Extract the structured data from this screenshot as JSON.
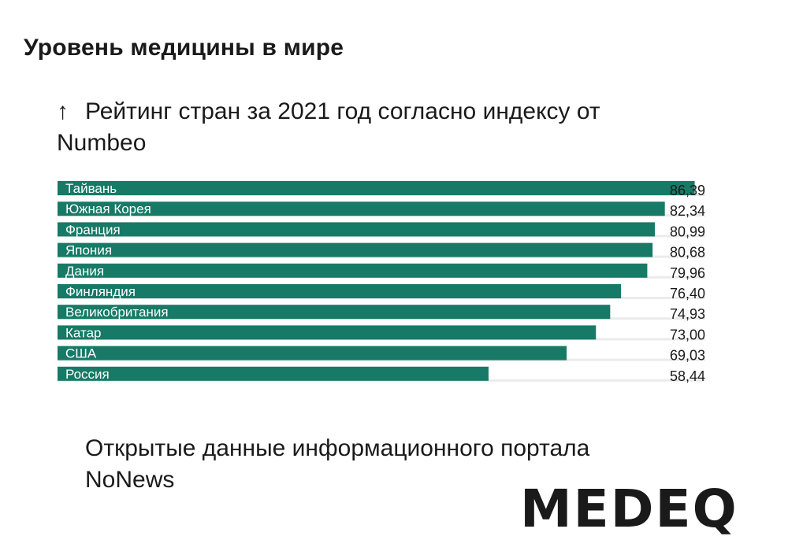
{
  "page": {
    "heading": "Уровень медицины в мире",
    "subtitle_arrow": "↑",
    "subtitle": "Рейтинг стран за 2021 год согласно индексу от Numbeo",
    "source": "Открытые данные информационного портала NoNews",
    "logo": "MEDEQ"
  },
  "colors": {
    "bar": "#177a66",
    "track": "#ebebeb",
    "bar_label": "#ffffff",
    "value_label": "#1a1a1a"
  },
  "chart_data": {
    "type": "bar",
    "orientation": "horizontal",
    "categories": [
      "Тайвань",
      "Южная Корея",
      "Франция",
      "Япония",
      "Дания",
      "Финляндия",
      "Великобритания",
      "Катар",
      "США",
      "Россия"
    ],
    "values": [
      86.39,
      82.34,
      80.99,
      80.68,
      79.96,
      76.4,
      74.93,
      73.0,
      69.03,
      58.44
    ],
    "value_labels": [
      "86,39",
      "82,34",
      "80,99",
      "80,68",
      "79,96",
      "76,40",
      "74,93",
      "73,00",
      "69,03",
      "58,44"
    ],
    "xlim": [
      0,
      100
    ],
    "grid": false,
    "legend": "none"
  }
}
